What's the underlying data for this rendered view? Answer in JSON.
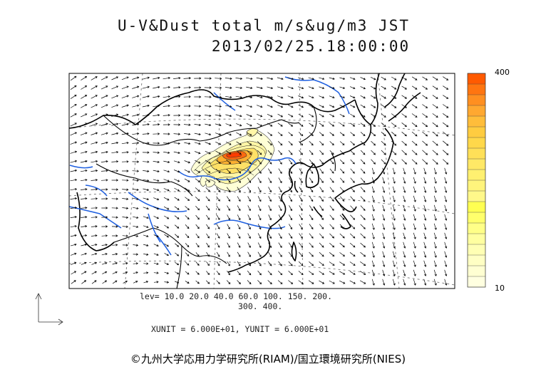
{
  "title_line1": "U-V&Dust total m/s&ug/m3 JST",
  "title_line2": "2013/02/25.18:00:00",
  "colorbar": {
    "max_label": "400",
    "min_label": "10",
    "colors": [
      "#ff5a00",
      "#ff7510",
      "#ff8f20",
      "#ffa830",
      "#ffbd3a",
      "#ffcc40",
      "#ffd84a",
      "#ffe058",
      "#ffe866",
      "#fff070",
      "#fff47c",
      "#fff88a",
      "#ffff52",
      "#ffff6c",
      "#ffff88",
      "#ffffa0",
      "#ffffb4",
      "#ffffc4",
      "#ffffd2",
      "#ffffe0"
    ]
  },
  "contour_levels_line1": "lev= 10.0 20.0 40.0 60.0 100. 150. 200.",
  "contour_levels_line2": "300. 400.",
  "units_text": "XUNIT = 6.000E+01, YUNIT = 6.000E+01",
  "credit": "©九州大学応用力学研究所(RIAM)/国立環境研究所(NIES)",
  "map_colors": {
    "coastline": "#000000",
    "rivers": "#1e5fe0",
    "grid": "#555555",
    "dust_low": "#fffbd0",
    "dust_high": "#ff4a00"
  }
}
